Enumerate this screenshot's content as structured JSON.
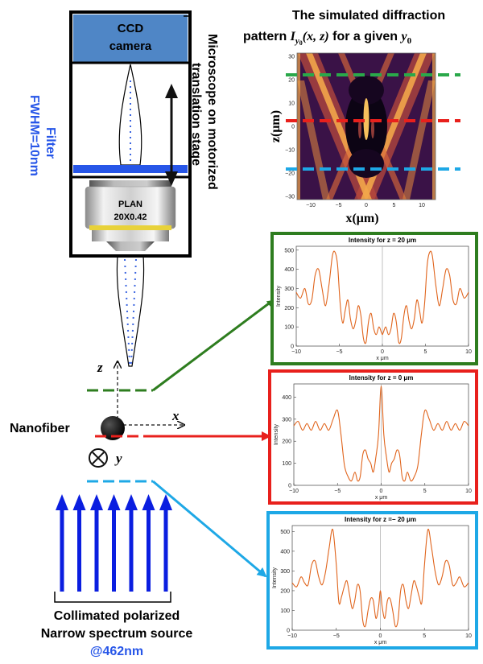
{
  "colors": {
    "green": "#2e7d1f",
    "red": "#e8201c",
    "cyan": "#1ea8e6",
    "blue": "#0a1ee0",
    "camera_fill": "#4f86c6",
    "curve": "#e0641c",
    "filter_blue": "#2756e8"
  },
  "camera": {
    "line1": "CCD",
    "line2": "camera"
  },
  "objective": {
    "line1": "PLAN",
    "line2": "20X0.42"
  },
  "stage_label": {
    "line1": "Microscope on motorized",
    "line2": "translation stage"
  },
  "filter_label": {
    "line1": "Filter",
    "line2": "FWHM=10nm"
  },
  "sim": {
    "title_line1": "The simulated diffraction",
    "title_line2_text": "pattern ",
    "title_formula": "I",
    "title_sub": "y",
    "title_sub0": "0",
    "title_args": "(x, z)",
    "title_rest": " for a given ",
    "title_var": "y",
    "title_var0": "0",
    "ylabel": "z(μm)",
    "xlabel": "x(μm)",
    "yticks": [
      "30",
      "20",
      "10",
      "0",
      "−10",
      "−20",
      "−30"
    ],
    "xticks": [
      "−10",
      "−5",
      "0",
      "5",
      "10"
    ]
  },
  "axes_labels": {
    "z": "z",
    "x": "x",
    "y": "y"
  },
  "nanofiber_label": "Nanofiber",
  "source": {
    "line1": "Collimated polarized",
    "line2": "Narrow spectrum source",
    "line3": "@462nm"
  },
  "chart_data": [
    {
      "type": "line",
      "title": "Intensity for z = 20 μm",
      "xlabel": "x μm",
      "ylabel": "Intensity",
      "xlim": [
        -10,
        10
      ],
      "ylim": [
        0,
        520
      ],
      "xticks": [
        "−10",
        "−5",
        "0",
        "5",
        "10"
      ],
      "yticks": [
        "0",
        "100",
        "200",
        "300",
        "400",
        "500"
      ],
      "ytick_values": [
        0,
        100,
        200,
        300,
        400,
        500
      ],
      "x": [
        -10,
        -9.5,
        -9,
        -8.6,
        -8.2,
        -7.8,
        -7.4,
        -7,
        -6.6,
        -6.2,
        -5.8,
        -5.5,
        -5.2,
        -4.9,
        -4.6,
        -4.3,
        -4,
        -3.7,
        -3.4,
        -3.1,
        -2.8,
        -2.5,
        -2.2,
        -1.9,
        -1.6,
        -1.3,
        -1,
        -0.7,
        -0.4,
        -0.1,
        0,
        0.1,
        0.4,
        0.7,
        1,
        1.3,
        1.6,
        1.9,
        2.2,
        2.5,
        2.8,
        3.1,
        3.4,
        3.7,
        4,
        4.3,
        4.6,
        4.9,
        5.2,
        5.5,
        5.8,
        6.2,
        6.6,
        7,
        7.4,
        7.8,
        8.2,
        8.6,
        9,
        9.5,
        10
      ],
      "values": [
        280,
        250,
        300,
        220,
        240,
        370,
        400,
        300,
        210,
        320,
        470,
        490,
        420,
        220,
        120,
        190,
        240,
        140,
        90,
        130,
        210,
        160,
        40,
        20,
        130,
        170,
        90,
        60,
        100,
        70,
        60,
        70,
        100,
        60,
        90,
        170,
        130,
        20,
        40,
        160,
        210,
        130,
        90,
        140,
        240,
        190,
        120,
        220,
        420,
        490,
        470,
        320,
        210,
        300,
        400,
        370,
        240,
        220,
        300,
        250,
        280
      ]
    },
    {
      "type": "line",
      "title": "Intensity for z = 0 μm",
      "xlabel": "x μm",
      "ylabel": "Intensity",
      "xlim": [
        -10,
        10
      ],
      "ylim": [
        0,
        460
      ],
      "xticks": [
        "−10",
        "−5",
        "0",
        "5",
        "10"
      ],
      "yticks": [
        "0",
        "100",
        "200",
        "300",
        "400"
      ],
      "ytick_values": [
        0,
        100,
        200,
        300,
        400
      ],
      "x": [
        -10,
        -9.5,
        -9,
        -8.5,
        -8,
        -7.5,
        -7,
        -6.5,
        -6,
        -5.5,
        -5,
        -4.6,
        -4.2,
        -3.8,
        -3.4,
        -3,
        -2.7,
        -2.4,
        -2.1,
        -1.8,
        -1.5,
        -1.2,
        -0.9,
        -0.6,
        -0.3,
        0,
        0.3,
        0.6,
        0.9,
        1.2,
        1.5,
        1.8,
        2.1,
        2.4,
        2.7,
        3,
        3.4,
        3.8,
        4.2,
        4.6,
        5,
        5.5,
        6,
        6.5,
        7,
        7.5,
        8,
        8.5,
        9,
        9.5,
        10
      ],
      "values": [
        270,
        290,
        250,
        280,
        250,
        290,
        250,
        280,
        250,
        300,
        340,
        230,
        90,
        40,
        20,
        60,
        20,
        40,
        140,
        160,
        120,
        100,
        60,
        130,
        230,
        450,
        230,
        130,
        60,
        100,
        120,
        160,
        140,
        40,
        20,
        60,
        20,
        40,
        90,
        230,
        340,
        300,
        250,
        280,
        250,
        290,
        250,
        280,
        250,
        290,
        270
      ]
    },
    {
      "type": "line",
      "title": "Intensity for z =− 20 μm",
      "xlabel": "x μm",
      "ylabel": "Intensity",
      "xlim": [
        -10,
        10
      ],
      "ylim": [
        0,
        530
      ],
      "xticks": [
        "−10",
        "−5",
        "0",
        "5",
        "10"
      ],
      "yticks": [
        "0",
        "100",
        "200",
        "300",
        "400",
        "500"
      ],
      "ytick_values": [
        0,
        100,
        200,
        300,
        400,
        500
      ],
      "x": [
        -10,
        -9.5,
        -9,
        -8.6,
        -8.2,
        -7.8,
        -7.4,
        -7,
        -6.6,
        -6.2,
        -5.8,
        -5.4,
        -5,
        -4.7,
        -4.4,
        -4.1,
        -3.8,
        -3.5,
        -3.2,
        -2.9,
        -2.6,
        -2.3,
        -2,
        -1.7,
        -1.4,
        -1.1,
        -0.8,
        -0.5,
        -0.2,
        0,
        0.2,
        0.5,
        0.8,
        1.1,
        1.4,
        1.7,
        2,
        2.3,
        2.6,
        2.9,
        3.2,
        3.5,
        3.8,
        4.1,
        4.4,
        4.7,
        5,
        5.4,
        5.8,
        6.2,
        6.6,
        7,
        7.4,
        7.8,
        8.2,
        8.6,
        9,
        9.5,
        10
      ],
      "values": [
        240,
        220,
        270,
        240,
        230,
        330,
        350,
        270,
        230,
        300,
        420,
        510,
        330,
        140,
        170,
        220,
        250,
        180,
        110,
        150,
        230,
        200,
        50,
        20,
        100,
        160,
        150,
        60,
        120,
        200,
        120,
        60,
        150,
        160,
        100,
        20,
        50,
        200,
        230,
        150,
        110,
        180,
        250,
        220,
        170,
        140,
        330,
        510,
        420,
        300,
        230,
        270,
        350,
        330,
        230,
        240,
        270,
        220,
        240
      ]
    }
  ]
}
